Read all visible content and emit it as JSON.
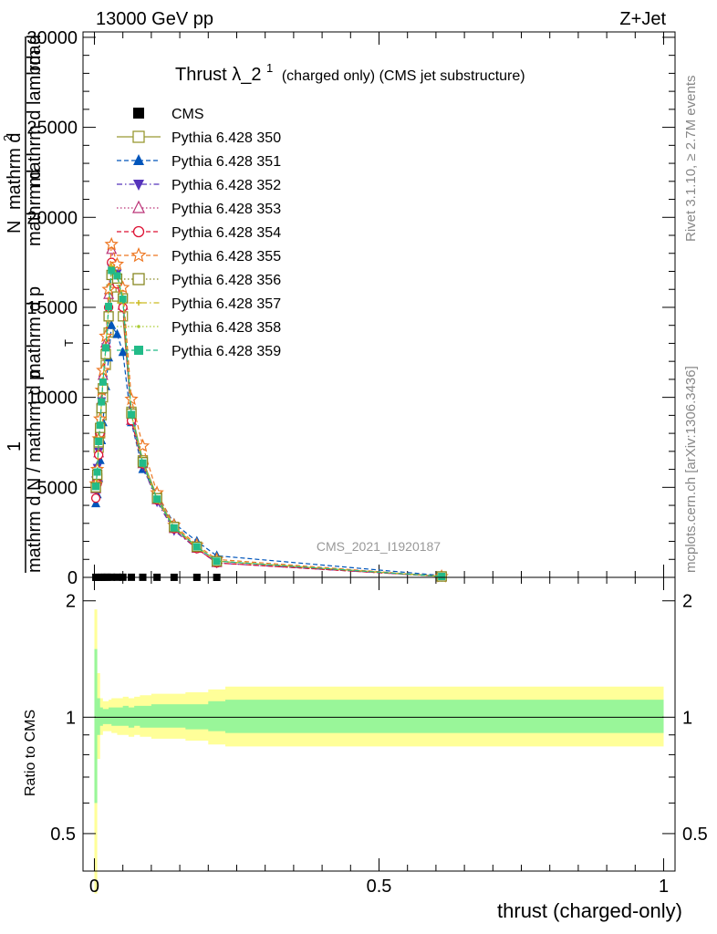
{
  "header": {
    "left": "13000 GeV pp",
    "right": "Z+Jet"
  },
  "side": {
    "rivet": "Rivet 3.1.10, ≥ 2.7M events",
    "mcplots": "mcplots.cern.ch [arXiv:1306.3436]"
  },
  "plot_title": {
    "main": "Thrust λ_2",
    "sup": "1",
    "sub": "(charged only) (CMS jet substructure)"
  },
  "ylabel": {
    "numerator_a": "1",
    "numerator_b": "mathrm d",
    "numerator_c": "2",
    "numerator_d": "N",
    "denominator": "mathrm d N / mathrm d p",
    "denominator_sub": "T",
    "denominator_tail": "mathrm d lambda",
    "top_fragment": "rm d",
    "mid_fragment": "mathrm d p",
    "mid_fragment2": "mathrm d",
    "small_sub": "T"
  },
  "watermark": "CMS_2021_I1920187",
  "xlabel": "thrust (charged-only)",
  "ratio_ylabel": "Ratio to CMS",
  "main_yticks": [
    {
      "v": 0,
      "label": "0"
    },
    {
      "v": 5000,
      "label": "5000"
    },
    {
      "v": 10000,
      "label": "10000"
    },
    {
      "v": 15000,
      "label": "15000"
    },
    {
      "v": 20000,
      "label": "20000"
    },
    {
      "v": 25000,
      "label": "25000"
    },
    {
      "v": 30000,
      "label": "30000"
    }
  ],
  "ratio_yticks": [
    {
      "v": 0.5,
      "label": "0.5"
    },
    {
      "v": 1,
      "label": "1"
    },
    {
      "v": 2,
      "label": "2"
    }
  ],
  "xticks": [
    {
      "v": 0,
      "label": "0"
    },
    {
      "v": 0.5,
      "label": "0.5"
    },
    {
      "v": 1,
      "label": "1"
    }
  ],
  "chart_data": {
    "type": "line",
    "xlim": [
      -0.02,
      1.02
    ],
    "ylim": [
      0,
      30300
    ],
    "ratio_ylim": [
      0.4,
      2.3
    ],
    "ratio_scale": "log",
    "legend_position": "top-left",
    "data_series": {
      "name": "CMS",
      "color": "#000000",
      "x": [
        0.0025,
        0.0075,
        0.0125,
        0.0175,
        0.0225,
        0.03,
        0.04,
        0.05,
        0.065,
        0.085,
        0.11,
        0.14,
        0.18,
        0.215
      ],
      "y": [
        3,
        4,
        5,
        6,
        7,
        8,
        8,
        7,
        6,
        5,
        4,
        3,
        2,
        1
      ]
    },
    "x": [
      0.0025,
      0.005,
      0.0075,
      0.01,
      0.0125,
      0.015,
      0.02,
      0.025,
      0.03,
      0.04,
      0.05,
      0.065,
      0.085,
      0.11,
      0.14,
      0.18,
      0.215,
      0.61
    ],
    "series": [
      {
        "name": "Pythia 6.428 350",
        "color": "#999933",
        "marker": "open-square",
        "dash": "solid",
        "y": [
          5000,
          5500,
          7200,
          8000,
          9000,
          10000,
          11800,
          13600,
          16000,
          15600,
          14500,
          9200,
          6500,
          4500,
          2800,
          1700,
          900,
          50
        ]
      },
      {
        "name": "Pythia 6.428 351",
        "color": "#0055bb",
        "marker": "filled-triangle-up",
        "dash": "dashed",
        "y": [
          4100,
          4600,
          5500,
          6500,
          7600,
          8600,
          10600,
          12200,
          14000,
          13500,
          12500,
          8600,
          6000,
          4600,
          3000,
          2000,
          1200,
          100
        ]
      },
      {
        "name": "Pythia 6.428 352",
        "color": "#5533bb",
        "marker": "filled-triangle-down",
        "dash": "dashdot",
        "y": [
          5400,
          6100,
          7000,
          8300,
          9800,
          11000,
          12800,
          15600,
          17200,
          16900,
          15500,
          9000,
          6200,
          4200,
          2600,
          1600,
          800,
          50
        ]
      },
      {
        "name": "Pythia 6.428 353",
        "color": "#bb3377",
        "marker": "open-triangle-up",
        "dash": "dotted",
        "y": [
          4900,
          5600,
          6900,
          8200,
          9800,
          11200,
          13000,
          15700,
          18200,
          16500,
          15100,
          8700,
          6300,
          4300,
          2700,
          1600,
          800,
          50
        ]
      },
      {
        "name": "Pythia 6.428 354",
        "color": "#dd1133",
        "marker": "open-circle",
        "dash": "dashed",
        "y": [
          4400,
          5200,
          6800,
          8000,
          9500,
          10600,
          12600,
          15000,
          17500,
          16300,
          15000,
          8700,
          6300,
          4300,
          2700,
          1600,
          800,
          50
        ]
      },
      {
        "name": "Pythia 6.428 355",
        "color": "#ee7722",
        "marker": "open-star",
        "dash": "dashed",
        "y": [
          5200,
          6000,
          7700,
          8800,
          10400,
          11500,
          13400,
          16000,
          18500,
          17400,
          16100,
          9900,
          7300,
          4700,
          2900,
          1800,
          1000,
          50
        ]
      },
      {
        "name": "Pythia 6.428 356",
        "color": "#888822",
        "marker": "open-square",
        "dash": "dotted",
        "y": [
          5000,
          5700,
          7500,
          8300,
          9400,
          10500,
          12400,
          14500,
          16800,
          16600,
          15500,
          9100,
          6400,
          4400,
          2800,
          1700,
          900,
          50
        ]
      },
      {
        "name": "Pythia 6.428 357",
        "color": "#ccbb22",
        "marker": "small-cross",
        "dash": "dashdot",
        "y": [
          5100,
          5900,
          7600,
          8500,
          9800,
          10900,
          12800,
          15100,
          17300,
          16800,
          15600,
          9100,
          6400,
          4400,
          2800,
          1700,
          900,
          50
        ]
      },
      {
        "name": "Pythia 6.428 358",
        "color": "#aacc33",
        "marker": "small-dot",
        "dash": "dotted",
        "y": [
          5000,
          5800,
          7500,
          8400,
          9700,
          10800,
          12700,
          15000,
          17100,
          16700,
          15400,
          9000,
          6300,
          4300,
          2700,
          1700,
          900,
          50
        ]
      },
      {
        "name": "Pythia 6.428 359",
        "color": "#22bb88",
        "marker": "filled-square",
        "dash": "dashed",
        "y": [
          5050,
          5850,
          7550,
          8450,
          9750,
          10850,
          12750,
          15050,
          17050,
          16750,
          15450,
          9050,
          6350,
          4350,
          2750,
          1700,
          900,
          50
        ]
      }
    ],
    "ratio_bands": {
      "x_edges": [
        0,
        0.005,
        0.01,
        0.015,
        0.02,
        0.025,
        0.03,
        0.04,
        0.05,
        0.06,
        0.07,
        0.08,
        0.1,
        0.12,
        0.16,
        0.2,
        0.23,
        1.0
      ],
      "yellow_up": [
        1.9,
        1.3,
        1.12,
        1.1,
        1.1,
        1.11,
        1.12,
        1.12,
        1.13,
        1.12,
        1.13,
        1.14,
        1.15,
        1.15,
        1.16,
        1.18,
        1.2
      ],
      "yellow_down": [
        0.35,
        0.78,
        0.9,
        0.92,
        0.92,
        0.92,
        0.91,
        0.9,
        0.9,
        0.89,
        0.9,
        0.89,
        0.88,
        0.88,
        0.87,
        0.85,
        0.84
      ],
      "green_up": [
        1.5,
        1.12,
        1.06,
        1.05,
        1.05,
        1.06,
        1.06,
        1.06,
        1.07,
        1.06,
        1.07,
        1.07,
        1.08,
        1.08,
        1.08,
        1.1,
        1.11
      ],
      "green_down": [
        0.6,
        0.9,
        0.95,
        0.96,
        0.96,
        0.96,
        0.95,
        0.95,
        0.95,
        0.94,
        0.95,
        0.94,
        0.94,
        0.94,
        0.93,
        0.92,
        0.91
      ]
    },
    "band_colors": {
      "yellow": "#ffff99",
      "green": "#99f699"
    }
  }
}
